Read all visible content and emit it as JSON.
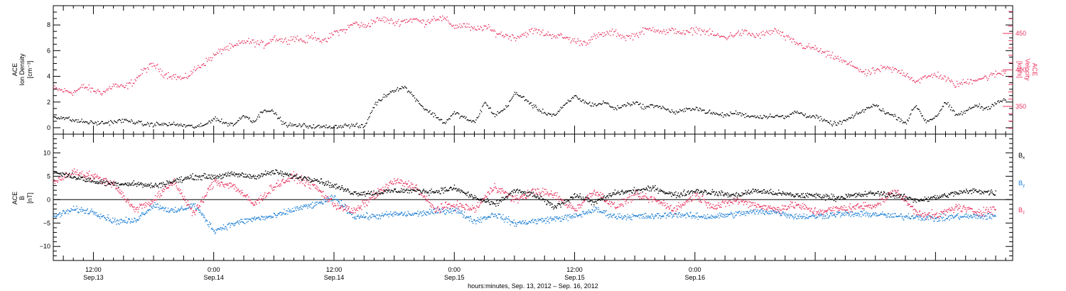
{
  "chart_data": [
    {
      "type": "scatter",
      "panel": "top",
      "ylabel_left": [
        "ACE",
        "Ion Density",
        "[cm⁻³]"
      ],
      "ylabel_right": [
        "ACE",
        "Velocity",
        "[km/s]"
      ],
      "ylim_left": [
        -0.5,
        9.5
      ],
      "ylim_right": [
        312,
        488
      ],
      "yticks_left": [
        0,
        2,
        4,
        6,
        8
      ],
      "yticks_left_labels": [
        "0",
        "2",
        "4",
        "6",
        "8"
      ],
      "yticks_right": [
        350,
        400,
        450
      ],
      "yticks_right_labels": [
        "350",
        "400",
        "450"
      ],
      "x_hours_range": [
        -16.0,
        79.7
      ],
      "series": [
        {
          "name": "Ion Density",
          "axis": "left",
          "color": "#000000",
          "x_hours": [
            -16.0,
            -15,
            -14,
            -13,
            -12,
            -11,
            -10,
            -9,
            -8,
            -7,
            -6,
            -5,
            -4,
            -3,
            -2,
            -1,
            0,
            1,
            2,
            3,
            4,
            5,
            6,
            7,
            8,
            9,
            10,
            11,
            12,
            13,
            14,
            15,
            16,
            17,
            18,
            19,
            20,
            21,
            22,
            23,
            24,
            25,
            26,
            27,
            28,
            29,
            30,
            31,
            32,
            33,
            34,
            35,
            36,
            37,
            38,
            39,
            40,
            41,
            42,
            43,
            44,
            45,
            46,
            47,
            48,
            49,
            50,
            51,
            52,
            53,
            54,
            55,
            56,
            57,
            58,
            59,
            60,
            61,
            62,
            63,
            64,
            65,
            66,
            67,
            68,
            69,
            70,
            71,
            72,
            73,
            74,
            75,
            76,
            77,
            78,
            79
          ],
          "values": [
            0.9,
            0.8,
            0.6,
            0.5,
            0.4,
            0.4,
            0.5,
            0.6,
            0.5,
            0.3,
            0.3,
            0.3,
            0.3,
            0.2,
            0.1,
            0.2,
            0.8,
            0.4,
            0.3,
            1.0,
            0.5,
            1.5,
            1.2,
            0.3,
            0.2,
            0.2,
            0.1,
            0.1,
            0.1,
            0.2,
            0.2,
            0.1,
            1.8,
            2.5,
            3.0,
            3.2,
            2.4,
            1.5,
            1.0,
            0.4,
            1.2,
            0.8,
            0.4,
            2.0,
            1.0,
            1.5,
            2.7,
            2.3,
            1.6,
            1.2,
            1.0,
            1.8,
            2.5,
            2.0,
            1.8,
            2.0,
            1.5,
            1.8,
            2.0,
            1.6,
            1.8,
            1.5,
            1.2,
            1.4,
            1.6,
            1.3,
            1.1,
            1.0,
            1.2,
            1.0,
            0.9,
            0.9,
            1.0,
            0.8,
            1.3,
            1.0,
            0.9,
            0.5,
            0.3,
            0.6,
            1.0,
            1.5,
            1.8,
            1.2,
            0.9,
            0.4,
            1.8,
            0.5,
            0.9,
            2.0,
            1.0,
            1.3,
            1.8,
            1.5,
            2.0,
            2.2
          ]
        },
        {
          "name": "Velocity",
          "axis": "right",
          "color": "#e8335f",
          "x_hours": [
            -16.0,
            -15,
            -14,
            -13,
            -12,
            -11,
            -10,
            -9,
            -8,
            -7,
            -6,
            -5,
            -4,
            -3,
            -2,
            -1,
            0,
            1,
            2,
            3,
            4,
            5,
            6,
            7,
            8,
            9,
            10,
            11,
            12,
            13,
            14,
            15,
            16,
            17,
            18,
            19,
            20,
            21,
            22,
            23,
            24,
            25,
            26,
            27,
            28,
            29,
            30,
            31,
            32,
            33,
            34,
            35,
            36,
            37,
            38,
            39,
            40,
            41,
            42,
            43,
            44,
            45,
            46,
            47,
            48,
            49,
            50,
            51,
            52,
            53,
            54,
            55,
            56,
            57,
            58,
            59,
            60,
            61,
            62,
            63,
            64,
            65,
            66,
            67,
            68,
            69,
            70,
            71,
            72,
            73,
            74,
            75,
            76,
            77,
            78,
            79
          ],
          "values": [
            375,
            372,
            370,
            378,
            372,
            370,
            380,
            376,
            385,
            400,
            408,
            395,
            392,
            388,
            400,
            410,
            420,
            430,
            432,
            440,
            438,
            435,
            445,
            440,
            445,
            440,
            448,
            438,
            452,
            455,
            465,
            460,
            468,
            470,
            465,
            468,
            470,
            465,
            472,
            470,
            460,
            462,
            455,
            460,
            452,
            448,
            445,
            450,
            455,
            450,
            448,
            445,
            440,
            438,
            446,
            450,
            452,
            445,
            448,
            455,
            457,
            452,
            455,
            450,
            456,
            453,
            448,
            445,
            450,
            452,
            447,
            450,
            455,
            445,
            438,
            432,
            430,
            422,
            418,
            410,
            405,
            395,
            400,
            403,
            400,
            395,
            385,
            390,
            395,
            388,
            380,
            384,
            388,
            390,
            395,
            398
          ]
        }
      ]
    },
    {
      "type": "scatter",
      "panel": "bottom",
      "ylabel_left": [
        "ACE",
        "B",
        "[nT]"
      ],
      "ylim": [
        -13,
        14
      ],
      "yticks": [
        -10,
        -5,
        0,
        5,
        10
      ],
      "yticks_labels": [
        "−10",
        "−5",
        "0",
        "5",
        "10"
      ],
      "zero_line": true,
      "x_hours_range": [
        -16.0,
        79.7
      ],
      "legend": [
        {
          "label": "B",
          "sub": "x",
          "color": "#000000"
        },
        {
          "label": "B",
          "sub": "y",
          "color": "#1e7fd4"
        },
        {
          "label": "B",
          "sub": "z",
          "color": "#e8335f"
        }
      ],
      "series": [
        {
          "name": "Bx",
          "color": "#000000",
          "x_hours": [
            -16,
            -14,
            -12,
            -10,
            -8,
            -6,
            -4,
            -2,
            0,
            2,
            4,
            6,
            8,
            10,
            12,
            14,
            16,
            18,
            20,
            22,
            24,
            26,
            28,
            30,
            32,
            34,
            36,
            38,
            40,
            42,
            44,
            46,
            48,
            50,
            52,
            54,
            56,
            58,
            60,
            62,
            64,
            66,
            68,
            70,
            72,
            74,
            76,
            78
          ],
          "values": [
            6.0,
            5.0,
            4.0,
            3.5,
            3.5,
            3.0,
            4.0,
            5.0,
            5.0,
            5.5,
            5.0,
            6.0,
            5.0,
            4.5,
            3.0,
            1.5,
            1.5,
            2.0,
            2.0,
            1.8,
            2.5,
            0.5,
            -1.0,
            2.0,
            1.0,
            -1.5,
            1.0,
            -0.5,
            1.5,
            2.0,
            2.5,
            1.0,
            2.0,
            1.5,
            1.0,
            2.0,
            1.5,
            1.0,
            1.0,
            0.5,
            1.0,
            1.5,
            1.0,
            0.0,
            0.5,
            1.5,
            2.0,
            1.5
          ]
        },
        {
          "name": "By",
          "color": "#1e7fd4",
          "x_hours": [
            -16,
            -14,
            -12,
            -10,
            -8,
            -6,
            -4,
            -2,
            0,
            2,
            4,
            6,
            8,
            10,
            12,
            14,
            16,
            18,
            20,
            22,
            24,
            26,
            28,
            30,
            32,
            34,
            36,
            38,
            40,
            42,
            44,
            46,
            48,
            50,
            52,
            54,
            56,
            58,
            60,
            62,
            64,
            66,
            68,
            70,
            72,
            74,
            76,
            78
          ],
          "values": [
            -3.5,
            -2.0,
            -2.5,
            -4.5,
            -4.5,
            -1.0,
            -2.5,
            -1.0,
            -6.5,
            -5.0,
            -4.0,
            -3.5,
            -2.0,
            -1.0,
            0.5,
            -3.5,
            -3.5,
            -3.0,
            -3.0,
            -2.5,
            -2.0,
            -4.5,
            -3.0,
            -5.0,
            -4.5,
            -4.0,
            -3.5,
            -2.0,
            -3.5,
            -3.5,
            -3.5,
            -3.0,
            -3.5,
            -3.5,
            -3.0,
            -2.5,
            -2.5,
            -3.5,
            -3.5,
            -3.0,
            -3.0,
            -3.0,
            -3.5,
            -3.5,
            -4.0,
            -3.5,
            -3.5,
            -3.5
          ]
        },
        {
          "name": "Bz",
          "color": "#e8335f",
          "x_hours": [
            -16,
            -14,
            -12,
            -10,
            -8,
            -6,
            -4,
            -2,
            0,
            2,
            4,
            6,
            8,
            10,
            12,
            14,
            16,
            18,
            20,
            22,
            24,
            26,
            28,
            30,
            32,
            34,
            36,
            38,
            40,
            42,
            44,
            46,
            48,
            50,
            52,
            54,
            56,
            58,
            60,
            62,
            64,
            66,
            68,
            70,
            72,
            74,
            76,
            78
          ],
          "values": [
            4.0,
            6.0,
            5.0,
            3.5,
            -2.0,
            0.0,
            4.0,
            -3.0,
            4.0,
            3.0,
            -1.0,
            3.0,
            5.0,
            3.0,
            -1.0,
            -2.5,
            1.0,
            4.0,
            3.0,
            -2.0,
            -1.0,
            -2.0,
            3.0,
            0.0,
            2.0,
            1.0,
            -2.0,
            2.0,
            -1.5,
            1.0,
            0.0,
            -2.0,
            1.0,
            -1.5,
            0.0,
            -1.0,
            -2.0,
            -1.0,
            -2.5,
            -2.0,
            -1.5,
            -1.0,
            2.0,
            -2.5,
            -3.5,
            -1.5,
            -2.5,
            -2.0
          ]
        }
      ]
    }
  ],
  "x_axis": {
    "tick_hours": [
      -12,
      0,
      12,
      24,
      36,
      48,
      60,
      72
    ],
    "tick_time_labels": [
      "12:00",
      "0:00",
      "12:00",
      "0:00",
      "12:00",
      "0:00"
    ],
    "tick_date_labels": [
      "Sep.13",
      "Sep.14",
      "Sep.14",
      "Sep.15",
      "Sep.15",
      "Sep.16"
    ],
    "label_hours": [
      -12,
      0,
      12,
      24,
      36,
      48
    ],
    "title": "hours:minutes, Sep. 13, 2012 – Sep. 16, 2012"
  },
  "colors": {
    "black": "#000000",
    "red": "#e8335f",
    "blue": "#1e7fd4"
  }
}
